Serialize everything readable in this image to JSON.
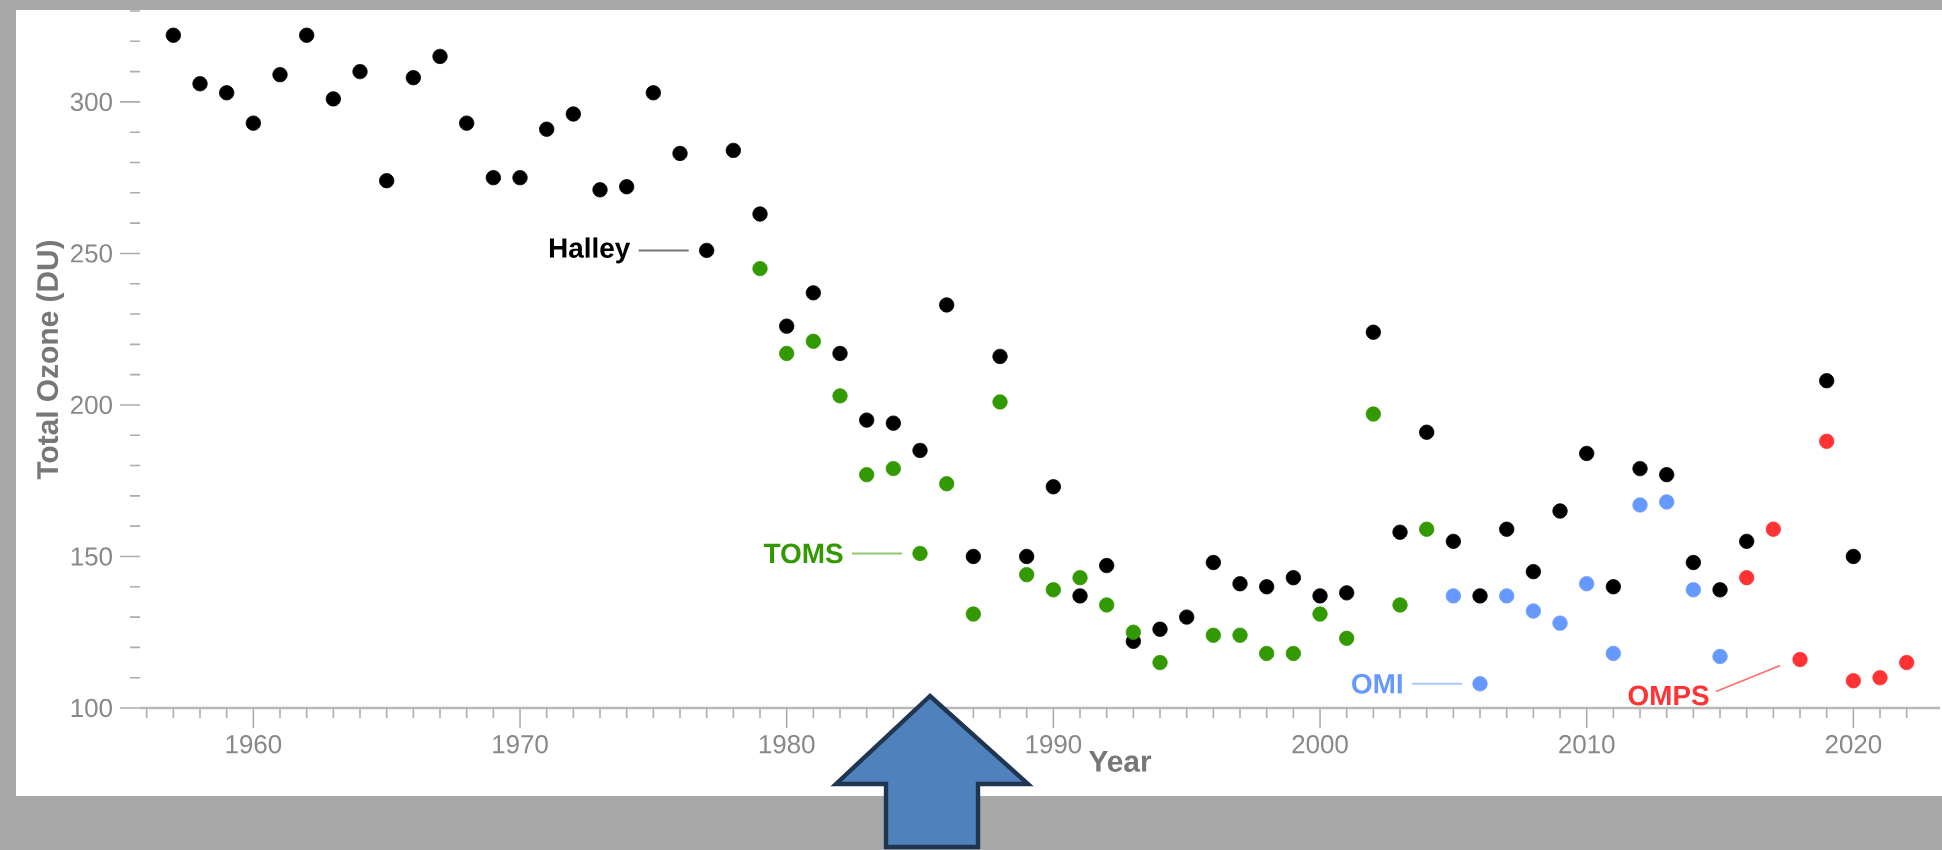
{
  "chart_data": {
    "type": "scatter",
    "xlabel": "Year",
    "ylabel": "Total Ozone (DU)",
    "marker": "circle",
    "xlim": [
      1955.75,
      2023.25
    ],
    "ylim": [
      100,
      330
    ],
    "xticks": [
      {
        "value": 1956,
        "label": null
      },
      {
        "value": 1957,
        "label": null
      },
      {
        "value": 1958,
        "label": null
      },
      {
        "value": 1959,
        "label": null
      },
      1960,
      {
        "value": 1961,
        "label": null
      },
      {
        "value": 1962,
        "label": null
      },
      {
        "value": 1963,
        "label": null
      },
      {
        "value": 1964,
        "label": null
      },
      {
        "value": 1965,
        "label": null
      },
      {
        "value": 1966,
        "label": null
      },
      {
        "value": 1967,
        "label": null
      },
      {
        "value": 1968,
        "label": null
      },
      {
        "value": 1969,
        "label": null
      },
      1970,
      {
        "value": 1971,
        "label": null
      },
      {
        "value": 1972,
        "label": null
      },
      {
        "value": 1973,
        "label": null
      },
      {
        "value": 1974,
        "label": null
      },
      {
        "value": 1975,
        "label": null
      },
      {
        "value": 1976,
        "label": null
      },
      {
        "value": 1977,
        "label": null
      },
      {
        "value": 1978,
        "label": null
      },
      {
        "value": 1979,
        "label": null
      },
      1980,
      {
        "value": 1981,
        "label": null
      },
      {
        "value": 1982,
        "label": null
      },
      {
        "value": 1983,
        "label": null
      },
      {
        "value": 1984,
        "label": null
      },
      {
        "value": 1985,
        "label": null
      },
      {
        "value": 1986,
        "label": null
      },
      {
        "value": 1987,
        "label": null
      },
      {
        "value": 1988,
        "label": null
      },
      {
        "value": 1989,
        "label": null
      },
      1990,
      {
        "value": 1991,
        "label": null
      },
      {
        "value": 1992,
        "label": null
      },
      {
        "value": 1993,
        "label": null
      },
      {
        "value": 1994,
        "label": null
      },
      {
        "value": 1995,
        "label": null
      },
      {
        "value": 1996,
        "label": null
      },
      {
        "value": 1997,
        "label": null
      },
      {
        "value": 1998,
        "label": null
      },
      {
        "value": 1999,
        "label": null
      },
      2000,
      {
        "value": 2001,
        "label": null
      },
      {
        "value": 2002,
        "label": null
      },
      {
        "value": 2003,
        "label": null
      },
      {
        "value": 2004,
        "label": null
      },
      {
        "value": 2005,
        "label": null
      },
      {
        "value": 2006,
        "label": null
      },
      {
        "value": 2007,
        "label": null
      },
      {
        "value": 2008,
        "label": null
      },
      {
        "value": 2009,
        "label": null
      },
      2010,
      {
        "value": 2011,
        "label": null
      },
      {
        "value": 2012,
        "label": null
      },
      {
        "value": 2013,
        "label": null
      },
      {
        "value": 2014,
        "label": null
      },
      {
        "value": 2015,
        "label": null
      },
      {
        "value": 2016,
        "label": null
      },
      {
        "value": 2017,
        "label": null
      },
      {
        "value": 2018,
        "label": null
      },
      {
        "value": 2019,
        "label": null
      },
      2020,
      {
        "value": 2021,
        "label": null
      },
      {
        "value": 2022,
        "label": null
      }
    ],
    "yticks": [
      100,
      {
        "value": 110,
        "label": null
      },
      {
        "value": 120,
        "label": null
      },
      {
        "value": 130,
        "label": null
      },
      {
        "value": 140,
        "label": null
      },
      150,
      {
        "value": 160,
        "label": null
      },
      {
        "value": 170,
        "label": null
      },
      {
        "value": 180,
        "label": null
      },
      {
        "value": 190,
        "label": null
      },
      200,
      {
        "value": 210,
        "label": null
      },
      {
        "value": 220,
        "label": null
      },
      {
        "value": 230,
        "label": null
      },
      {
        "value": 240,
        "label": null
      },
      250,
      {
        "value": 260,
        "label": null
      },
      {
        "value": 270,
        "label": null
      },
      {
        "value": 280,
        "label": null
      },
      {
        "value": 290,
        "label": null
      },
      300,
      {
        "value": 310,
        "label": null
      },
      {
        "value": 320,
        "label": null
      },
      {
        "value": 330,
        "label": null
      }
    ],
    "series": [
      {
        "name": "Halley",
        "color": "#000000",
        "x": [
          1957,
          1958,
          1959,
          1960,
          1961,
          1962,
          1963,
          1964,
          1965,
          1966,
          1967,
          1968,
          1969,
          1970,
          1971,
          1972,
          1973,
          1974,
          1975,
          1976,
          1977,
          1978,
          1979,
          1980,
          1981,
          1982,
          1983,
          1984,
          1985,
          1986,
          1987,
          1988,
          1989,
          1990,
          1991,
          1992,
          1993,
          1994,
          1995,
          1996,
          1997,
          1998,
          1999,
          2000,
          2001,
          2002,
          2003,
          2004,
          2005,
          2006,
          2007,
          2008,
          2009,
          2010,
          2011,
          2012,
          2013,
          2014,
          2015,
          2016,
          2019,
          2020
        ],
        "values": [
          322,
          306,
          303,
          293,
          309,
          322,
          301,
          310,
          274,
          308,
          315,
          293,
          275,
          275,
          291,
          296,
          271,
          272,
          303,
          283,
          251,
          284,
          263,
          226,
          237,
          217,
          195,
          194,
          185,
          233,
          150,
          216,
          150,
          173,
          137,
          147,
          122,
          126,
          130,
          148,
          141,
          140,
          143,
          137,
          138,
          224,
          158,
          191,
          155,
          137,
          159,
          145,
          165,
          184,
          140,
          179,
          177,
          148,
          139,
          155,
          208,
          150
        ]
      },
      {
        "name": "TOMS",
        "color": "#339900",
        "x": [
          1979,
          1980,
          1981,
          1982,
          1983,
          1984,
          1985,
          1986,
          1987,
          1988,
          1989,
          1990,
          1991,
          1992,
          1993,
          1994,
          1996,
          1997,
          1998,
          1999,
          2000,
          2001,
          2002,
          2003,
          2004
        ],
        "values": [
          245,
          217,
          221,
          203,
          177,
          179,
          151,
          174,
          131,
          201,
          144,
          139,
          143,
          134,
          125,
          115,
          124,
          124,
          118,
          118,
          131,
          123,
          197,
          134,
          159
        ]
      },
      {
        "name": "OMI",
        "color": "#6699ff",
        "x": [
          2005,
          2006,
          2007,
          2008,
          2009,
          2010,
          2011,
          2012,
          2013,
          2014,
          2015
        ],
        "values": [
          137,
          108,
          137,
          132,
          128,
          141,
          118,
          167,
          168,
          139,
          117
        ]
      },
      {
        "name": "OMPS",
        "color": "#ff3333",
        "x": [
          2016,
          2017,
          2018,
          2019,
          2020,
          2021,
          2022
        ],
        "values": [
          143,
          159,
          116,
          188,
          109,
          110,
          115
        ]
      }
    ]
  }
}
